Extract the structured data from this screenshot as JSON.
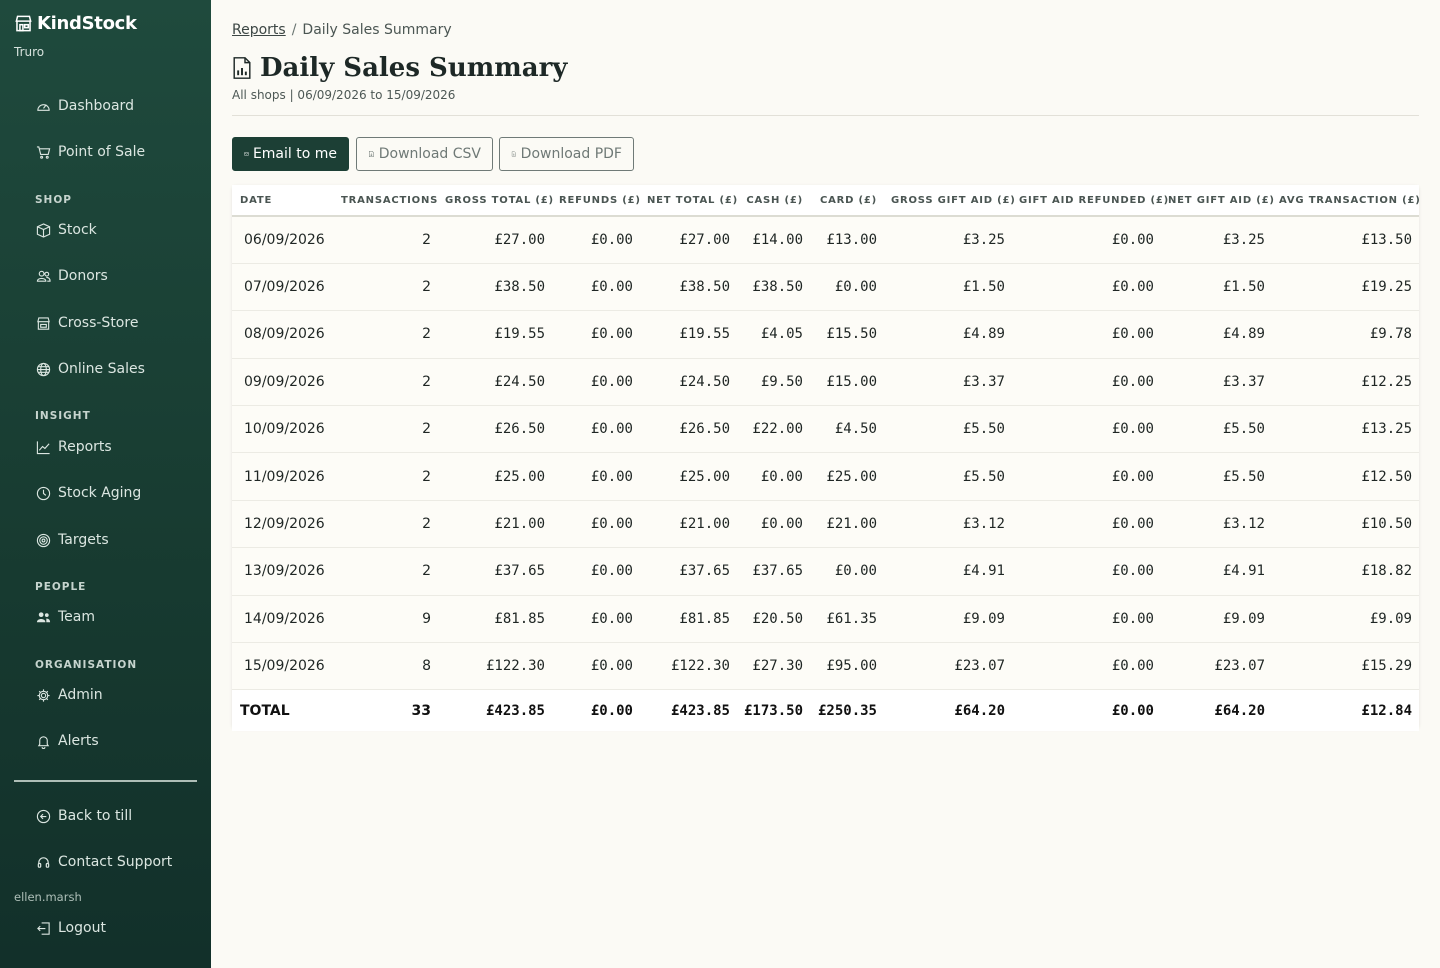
{
  "brand": {
    "name": "KindStock",
    "shop": "Truro"
  },
  "sidebar": {
    "top_items": [
      {
        "label": "Dashboard",
        "icon": "gauge-icon"
      },
      {
        "label": "Point of Sale",
        "icon": "cart-icon"
      }
    ],
    "sections": [
      {
        "title": "SHOP",
        "items": [
          {
            "label": "Stock",
            "icon": "box-icon"
          },
          {
            "label": "Donors",
            "icon": "people-icon"
          },
          {
            "label": "Cross-Store",
            "icon": "store-icon"
          },
          {
            "label": "Online Sales",
            "icon": "globe-icon"
          }
        ]
      },
      {
        "title": "INSIGHT",
        "items": [
          {
            "label": "Reports",
            "icon": "chart-line-icon"
          },
          {
            "label": "Stock Aging",
            "icon": "clock-icon"
          },
          {
            "label": "Targets",
            "icon": "target-icon"
          }
        ]
      },
      {
        "title": "PEOPLE",
        "items": [
          {
            "label": "Team",
            "icon": "team-icon"
          }
        ]
      },
      {
        "title": "ORGANISATION",
        "items": [
          {
            "label": "Admin",
            "icon": "gear-icon"
          },
          {
            "label": "Alerts",
            "icon": "bell-icon"
          }
        ]
      }
    ],
    "back_to_till": "Back to till",
    "contact_support": "Contact Support",
    "username": "ellen.marsh",
    "logout": "Logout"
  },
  "breadcrumb": {
    "parent": "Reports",
    "separator": "/",
    "current": "Daily Sales Summary"
  },
  "page": {
    "title": "Daily Sales Summary",
    "subtitle": "All shops | 06/09/2026 to 15/09/2026"
  },
  "actions": {
    "email": "Email to me",
    "csv": "Download CSV",
    "pdf": "Download PDF"
  },
  "table": {
    "headers": [
      "DATE",
      "TRANSACTIONS",
      "GROSS TOTAL (£)",
      "REFUNDS (£)",
      "NET TOTAL (£)",
      "CASH (£)",
      "CARD (£)",
      "GROSS GIFT AID (£)",
      "GIFT AID REFUNDED (£)",
      "NET GIFT AID (£)",
      "AVG TRANSACTION (£)"
    ],
    "rows": [
      [
        "06/09/2026",
        "2",
        "£27.00",
        "£0.00",
        "£27.00",
        "£14.00",
        "£13.00",
        "£3.25",
        "£0.00",
        "£3.25",
        "£13.50"
      ],
      [
        "07/09/2026",
        "2",
        "£38.50",
        "£0.00",
        "£38.50",
        "£38.50",
        "£0.00",
        "£1.50",
        "£0.00",
        "£1.50",
        "£19.25"
      ],
      [
        "08/09/2026",
        "2",
        "£19.55",
        "£0.00",
        "£19.55",
        "£4.05",
        "£15.50",
        "£4.89",
        "£0.00",
        "£4.89",
        "£9.78"
      ],
      [
        "09/09/2026",
        "2",
        "£24.50",
        "£0.00",
        "£24.50",
        "£9.50",
        "£15.00",
        "£3.37",
        "£0.00",
        "£3.37",
        "£12.25"
      ],
      [
        "10/09/2026",
        "2",
        "£26.50",
        "£0.00",
        "£26.50",
        "£22.00",
        "£4.50",
        "£5.50",
        "£0.00",
        "£5.50",
        "£13.25"
      ],
      [
        "11/09/2026",
        "2",
        "£25.00",
        "£0.00",
        "£25.00",
        "£0.00",
        "£25.00",
        "£5.50",
        "£0.00",
        "£5.50",
        "£12.50"
      ],
      [
        "12/09/2026",
        "2",
        "£21.00",
        "£0.00",
        "£21.00",
        "£0.00",
        "£21.00",
        "£3.12",
        "£0.00",
        "£3.12",
        "£10.50"
      ],
      [
        "13/09/2026",
        "2",
        "£37.65",
        "£0.00",
        "£37.65",
        "£37.65",
        "£0.00",
        "£4.91",
        "£0.00",
        "£4.91",
        "£18.82"
      ],
      [
        "14/09/2026",
        "9",
        "£81.85",
        "£0.00",
        "£81.85",
        "£20.50",
        "£61.35",
        "£9.09",
        "£0.00",
        "£9.09",
        "£9.09"
      ],
      [
        "15/09/2026",
        "8",
        "£122.30",
        "£0.00",
        "£122.30",
        "£27.30",
        "£95.00",
        "£23.07",
        "£0.00",
        "£23.07",
        "£15.29"
      ]
    ],
    "total": [
      "TOTAL",
      "33",
      "£423.85",
      "£0.00",
      "£423.85",
      "£173.50",
      "£250.35",
      "£64.20",
      "£0.00",
      "£64.20",
      "£12.84"
    ]
  }
}
